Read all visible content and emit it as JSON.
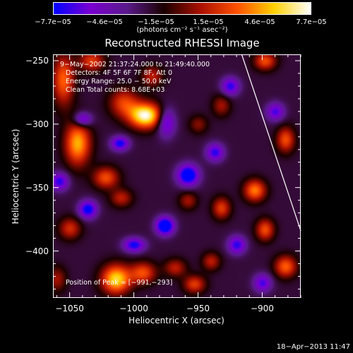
{
  "colorbar": {
    "ticks": [
      "−7.7e−05",
      "−4.6e−05",
      "−1.5e−05",
      "1.5e−05",
      "4.6e−05",
      "7.7e−05"
    ],
    "tick_values": [
      -7.7e-05,
      -4.6e-05,
      -1.5e-05,
      1.5e-05,
      4.6e-05,
      7.7e-05
    ],
    "units": "(photons cm⁻² s⁻¹ asec⁻²)",
    "colors": [
      "#0000ff",
      "#7a00d0",
      "#5a1a8a",
      "#1a0000",
      "#aa1000",
      "#ff5000",
      "#ffd000",
      "#ffffff"
    ]
  },
  "plot": {
    "title": "Reconstructed RHESSI Image",
    "info": {
      "time_range": "9−May−2002 21:37:24.000 to 21:49:40.000",
      "detectors": "Detectors: 4F 5F 6F 7F 8F, Att 0",
      "energy": "Energy Range: 25.0 − 50.0 keV",
      "algorithm": "Clean     Total counts: 8.68E+03"
    },
    "peak_label": "Position of Peak = [−991,−293]"
  },
  "chart_data": {
    "type": "heatmap",
    "title": "Reconstructed RHESSI Image",
    "xlabel": "Heliocentric X (arcsec)",
    "ylabel": "Heliocentric Y (arcsec)",
    "xlim": [
      -1063,
      -870
    ],
    "ylim": [
      -437,
      -245
    ],
    "x_ticks": [
      -1050,
      -1000,
      -950,
      -900
    ],
    "x_tick_labels": [
      "−1050",
      "−1000",
      "−950",
      "−900"
    ],
    "y_ticks": [
      -250,
      -300,
      -350,
      -400
    ],
    "y_tick_labels": [
      "−250",
      "−300",
      "−350",
      "−400"
    ],
    "zlim": [
      -7.7e-05,
      7.7e-05
    ],
    "peak_position": [
      -991,
      -293
    ],
    "limb_line": {
      "x": [
        -916,
        -870
      ],
      "y": [
        -245,
        -384
      ]
    },
    "background_level": -2e-05,
    "sources": [
      {
        "x": -991,
        "y": -293,
        "sx": 9,
        "sy": 7,
        "value": 9.5e-05
      },
      {
        "x": -1008,
        "y": -283,
        "sx": 8,
        "sy": 8,
        "value": 4.5e-05
      },
      {
        "x": -1055,
        "y": -265,
        "sx": 6,
        "sy": 14,
        "value": 5.5e-05
      },
      {
        "x": -1044,
        "y": -315,
        "sx": 7,
        "sy": 12,
        "value": 7e-05
      },
      {
        "x": -1033,
        "y": -250,
        "sx": 7,
        "sy": 6,
        "value": 4.5e-05
      },
      {
        "x": -986,
        "y": -262,
        "sx": 6,
        "sy": 6,
        "value": 3.5e-05
      },
      {
        "x": -950,
        "y": -300,
        "sx": 5,
        "sy": 5,
        "value": 2.5e-05
      },
      {
        "x": -932,
        "y": -285,
        "sx": 5,
        "sy": 6,
        "value": 3e-05
      },
      {
        "x": -898,
        "y": -250,
        "sx": 6,
        "sy": 5,
        "value": 5e-05
      },
      {
        "x": -882,
        "y": -312,
        "sx": 5,
        "sy": 7,
        "value": 5e-05
      },
      {
        "x": -906,
        "y": -352,
        "sx": 6,
        "sy": 6,
        "value": 6e-05
      },
      {
        "x": -898,
        "y": -383,
        "sx": 5,
        "sy": 6,
        "value": 5e-05
      },
      {
        "x": -932,
        "y": -366,
        "sx": 5,
        "sy": 6,
        "value": 4.5e-05
      },
      {
        "x": -882,
        "y": -412,
        "sx": 6,
        "sy": 6,
        "value": 5.5e-05
      },
      {
        "x": -1014,
        "y": -422,
        "sx": 8,
        "sy": 8,
        "value": 8e-05
      },
      {
        "x": -993,
        "y": -417,
        "sx": 7,
        "sy": 6,
        "value": 5e-05
      },
      {
        "x": -968,
        "y": -413,
        "sx": 6,
        "sy": 5,
        "value": 3.5e-05
      },
      {
        "x": -953,
        "y": -426,
        "sx": 6,
        "sy": 5,
        "value": 4.5e-05
      },
      {
        "x": -940,
        "y": -408,
        "sx": 5,
        "sy": 5,
        "value": 3.5e-05
      },
      {
        "x": -1022,
        "y": -342,
        "sx": 7,
        "sy": 6,
        "value": 5e-05
      },
      {
        "x": -1010,
        "y": -358,
        "sx": 6,
        "sy": 5,
        "value": 3.5e-05
      },
      {
        "x": -958,
        "y": -360,
        "sx": 5,
        "sy": 5,
        "value": 3e-05
      },
      {
        "x": -1050,
        "y": -382,
        "sx": 6,
        "sy": 6,
        "value": 4e-05
      },
      {
        "x": -1060,
        "y": -422,
        "sx": 5,
        "sy": 7,
        "value": 3e-05
      },
      {
        "x": -975,
        "y": -298,
        "sx": 5,
        "sy": 8,
        "value": -5e-05
      },
      {
        "x": -958,
        "y": -340,
        "sx": 6,
        "sy": 6,
        "value": -7e-05
      },
      {
        "x": -976,
        "y": -380,
        "sx": 5,
        "sy": 5,
        "value": -7.5e-05
      },
      {
        "x": -1036,
        "y": -367,
        "sx": 5,
        "sy": 5,
        "value": -6e-05
      },
      {
        "x": -937,
        "y": -322,
        "sx": 5,
        "sy": 5,
        "value": -5e-05
      },
      {
        "x": -1040,
        "y": -296,
        "sx": 5,
        "sy": 4,
        "value": -5e-05
      },
      {
        "x": -1011,
        "y": -315,
        "sx": 5,
        "sy": 4,
        "value": -5.5e-05
      },
      {
        "x": -1000,
        "y": -395,
        "sx": 6,
        "sy": 4,
        "value": -5.5e-05
      },
      {
        "x": -920,
        "y": -395,
        "sx": 5,
        "sy": 5,
        "value": -5e-05
      },
      {
        "x": -925,
        "y": -270,
        "sx": 5,
        "sy": 5,
        "value": -5e-05
      },
      {
        "x": -890,
        "y": -290,
        "sx": 5,
        "sy": 5,
        "value": -4.5e-05
      },
      {
        "x": -1058,
        "y": -345,
        "sx": 5,
        "sy": 5,
        "value": -5e-05
      },
      {
        "x": -900,
        "y": -425,
        "sx": 5,
        "sy": 5,
        "value": -4.5e-05
      }
    ]
  },
  "footer": {
    "timestamp": "18−Apr−2013 11:47"
  }
}
